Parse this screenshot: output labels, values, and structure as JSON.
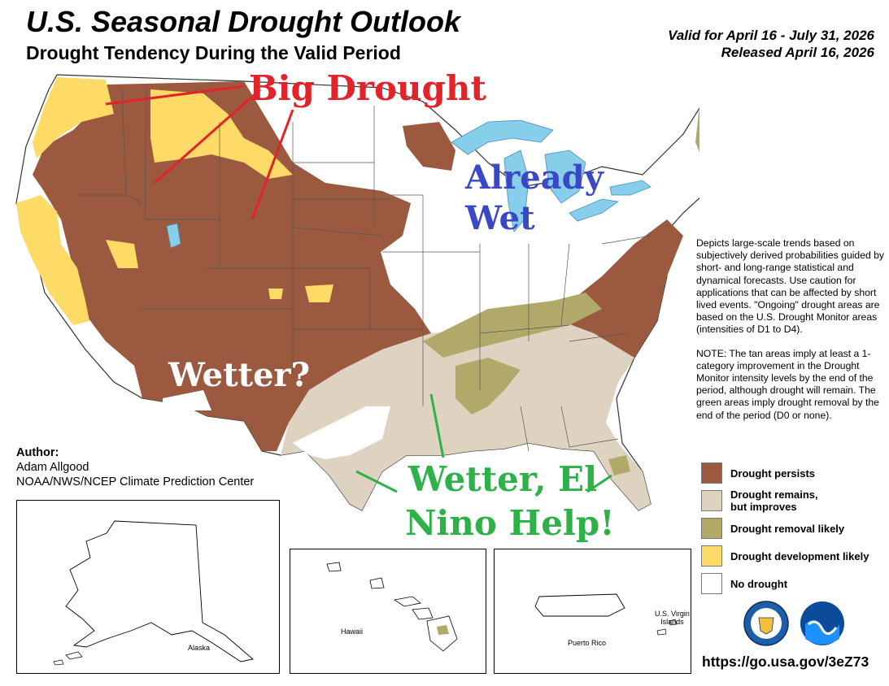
{
  "header": {
    "title": "U.S. Seasonal Drought Outlook",
    "subtitle": "Drought Tendency During the Valid Period",
    "valid_period": "Valid for April 16 - July 31, 2026",
    "released": "Released April 16, 2026"
  },
  "description": {
    "paragraph1": "Depicts large-scale trends based on subjectively derived probabilities guided by short- and long-range statistical and dynamical forecasts. Use caution for applications that can be affected by short lived events. \"Ongoing\" drought areas are based on the U.S. Drought Monitor areas (intensities of D1 to D4).",
    "paragraph2": "NOTE: The tan areas imply at least a 1-category improvement in the Drought Monitor intensity levels by the end of the period, although drought will remain. The green areas imply drought removal by the end of the period (D0 or none)."
  },
  "legend": {
    "items": [
      {
        "label": "Drought persists",
        "color": "#9b5a3f"
      },
      {
        "label": "Drought remains,\nbut improves",
        "color": "#ded3c0"
      },
      {
        "label": "Drought removal likely",
        "color": "#b1a96a"
      },
      {
        "label": "Drought development likely",
        "color": "#fedb66"
      },
      {
        "label": "No drought",
        "color": "#ffffff"
      }
    ]
  },
  "author": {
    "heading": "Author:",
    "name": "Adam Allgood",
    "org": "NOAA/NWS/NCEP Climate Prediction Center"
  },
  "insets": {
    "alaska": "Alaska",
    "hawaii": "Hawaii",
    "puerto_rico": "Puerto Rico",
    "virgin_islands_line1": "U.S. Virgin",
    "virgin_islands_line2": "Islands"
  },
  "link": "https://go.usa.gov/3eZ73",
  "annotations": {
    "big_drought": "Big Drought",
    "already_wet_line1": "Already",
    "already_wet_line2": "Wet",
    "wetter": "Wetter?",
    "el_nino_line1": "Wetter, El",
    "el_nino_line2": "Nino Help!"
  },
  "colors": {
    "persists": "#9b5a3f",
    "improves": "#ded3c0",
    "removal": "#b1a96a",
    "development": "#fedb66",
    "water": "#87ceeb",
    "annotation_red": "#e3232a",
    "annotation_blue": "#3a48c6",
    "annotation_green": "#2fb14a"
  },
  "logos": [
    "doc-seal-icon",
    "noaa-logo-icon"
  ]
}
